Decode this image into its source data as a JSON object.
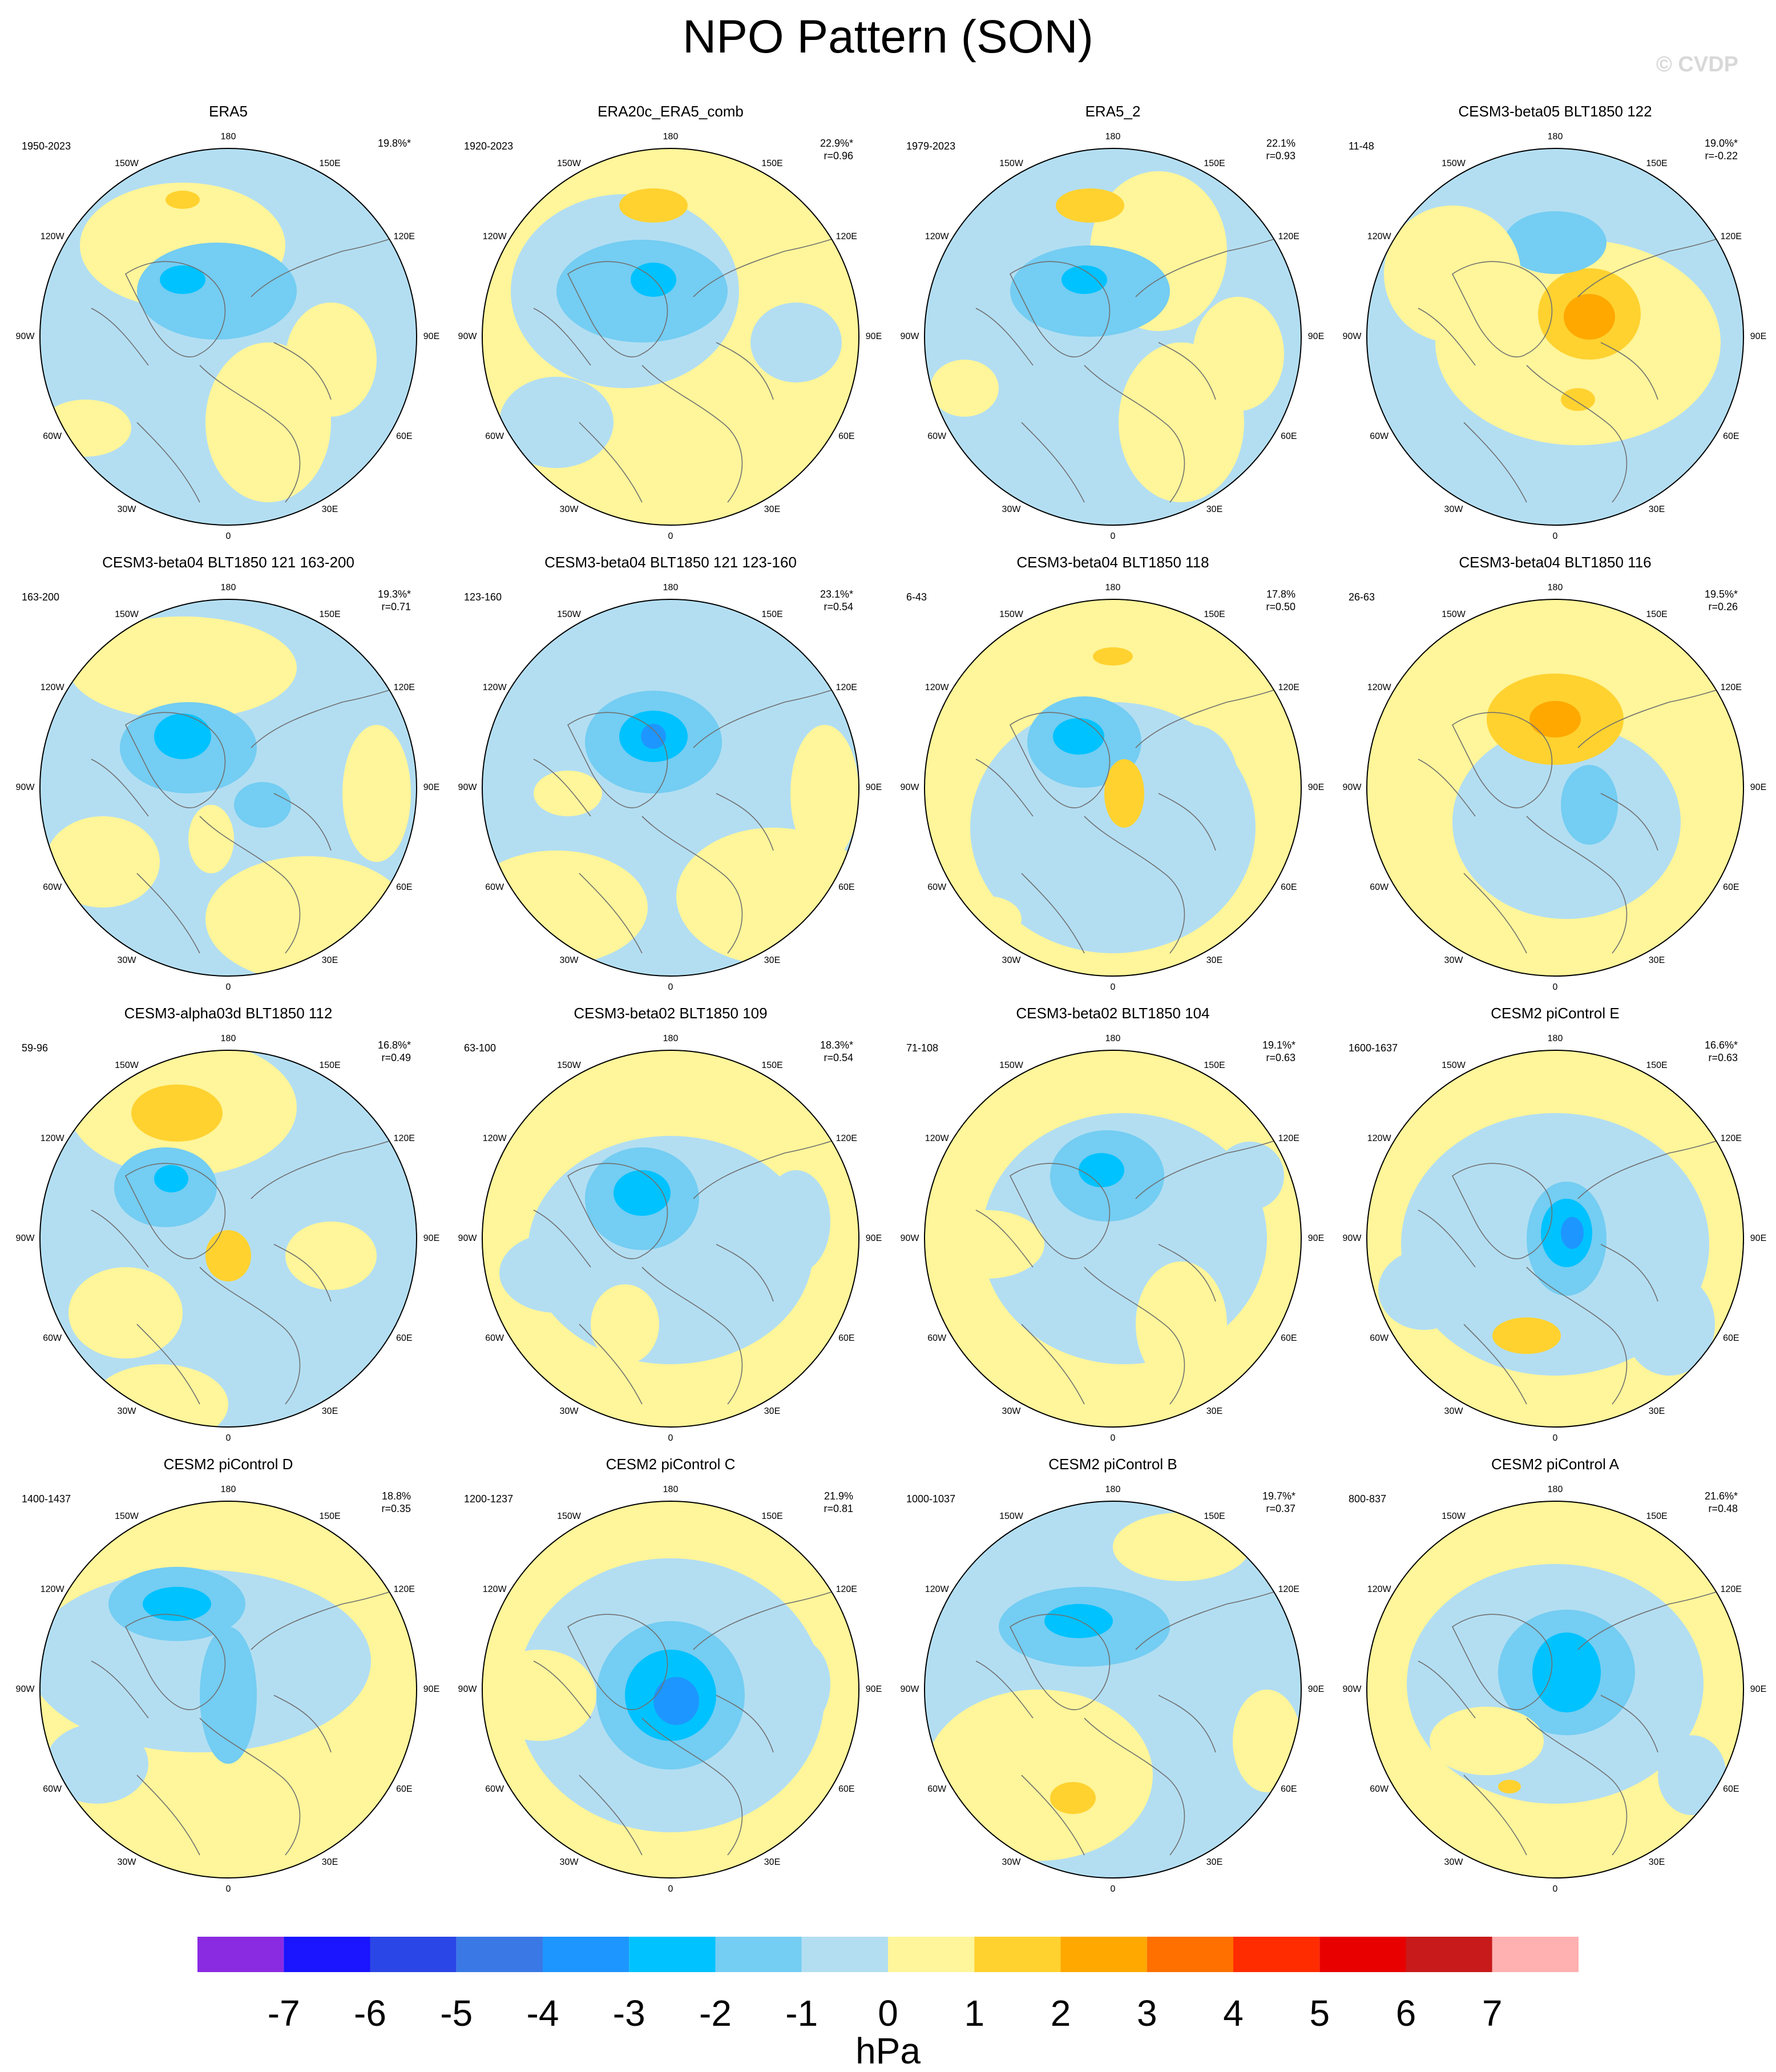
{
  "title": "NPO Pattern (SON)",
  "watermark": "© CVDP",
  "longitude_labels": [
    "180",
    "150E",
    "120E",
    "90E",
    "60E",
    "30E",
    "0",
    "30W",
    "60W",
    "90W",
    "120W",
    "150W"
  ],
  "colors": {
    "levels": [
      "#8a2be2",
      "#1a14ff",
      "#2a46e6",
      "#3a78e6",
      "#1e96ff",
      "#00c2ff",
      "#74cdf2",
      "#b3def2",
      "#fff59a",
      "#ffd230",
      "#ffa800",
      "#ff7000",
      "#ff2c00",
      "#e80000",
      "#c81a1a",
      "#ffb0b0"
    ],
    "neg1": "#b3def2",
    "neg2": "#74cdf2",
    "neg3": "#00c2ff",
    "neg4": "#1e96ff",
    "neg5": "#3a78e6",
    "pos1": "#fff59a",
    "pos2": "#ffd230",
    "pos3": "#ffa800",
    "pos4": "#ff7000",
    "coast": "#707070"
  },
  "colorbar": {
    "ticks": [
      "-7",
      "-6",
      "-5",
      "-4",
      "-3",
      "-2",
      "-1",
      "0",
      "1",
      "2",
      "3",
      "4",
      "5",
      "6",
      "7"
    ],
    "unit": "hPa"
  },
  "panels": [
    {
      "name": "ERA5",
      "years": "1950-2023",
      "pct": "19.8%*",
      "r": ""
    },
    {
      "name": "ERA20c_ERA5_comb",
      "years": "1920-2023",
      "pct": "22.9%*",
      "r": "r=0.96"
    },
    {
      "name": "ERA5_2",
      "years": "1979-2023",
      "pct": "22.1%",
      "r": "r=0.93"
    },
    {
      "name": "CESM3-beta05 BLT1850 122",
      "years": "11-48",
      "pct": "19.0%*",
      "r": "r=-0.22"
    },
    {
      "name": "CESM3-beta04 BLT1850 121 163-200",
      "years": "163-200",
      "pct": "19.3%*",
      "r": "r=0.71"
    },
    {
      "name": "CESM3-beta04 BLT1850 121 123-160",
      "years": "123-160",
      "pct": "23.1%*",
      "r": "r=0.54"
    },
    {
      "name": "CESM3-beta04 BLT1850 118",
      "years": "6-43",
      "pct": "17.8%",
      "r": "r=0.50"
    },
    {
      "name": "CESM3-beta04 BLT1850 116",
      "years": "26-63",
      "pct": "19.5%*",
      "r": "r=0.26"
    },
    {
      "name": "CESM3-alpha03d BLT1850 112",
      "years": "59-96",
      "pct": "16.8%*",
      "r": "r=0.49"
    },
    {
      "name": "CESM3-beta02 BLT1850 109",
      "years": "63-100",
      "pct": "18.3%*",
      "r": "r=0.54"
    },
    {
      "name": "CESM3-beta02 BLT1850 104",
      "years": "71-108",
      "pct": "19.1%*",
      "r": "r=0.63"
    },
    {
      "name": "CESM2 piControl E",
      "years": "1600-1637",
      "pct": "16.6%*",
      "r": "r=0.63"
    },
    {
      "name": "CESM2 piControl D",
      "years": "1400-1437",
      "pct": "18.8%",
      "r": "r=0.35"
    },
    {
      "name": "CESM2 piControl C",
      "years": "1200-1237",
      "pct": "21.9%",
      "r": "r=0.81"
    },
    {
      "name": "CESM2 piControl B",
      "years": "1000-1037",
      "pct": "19.7%*",
      "r": "r=0.37"
    },
    {
      "name": "CESM2 piControl A",
      "years": "800-837",
      "pct": "21.6%*",
      "r": "r=0.48"
    }
  ]
}
